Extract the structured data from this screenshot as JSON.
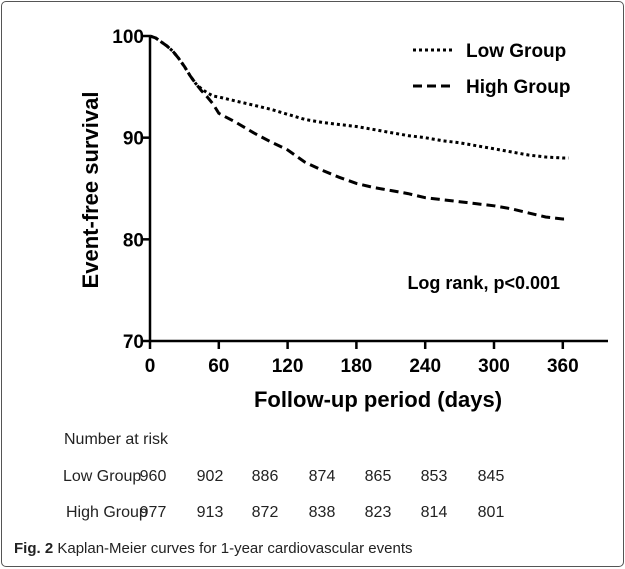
{
  "chart_data": {
    "type": "line",
    "ylabel": "Event-free survival",
    "xlabel": "Follow-up period (days)",
    "xlim": [
      0,
      375
    ],
    "ylim": [
      70,
      100
    ],
    "x_ticks": [
      "0",
      "60",
      "120",
      "180",
      "240",
      "300",
      "360"
    ],
    "x_tick_values": [
      0,
      60,
      120,
      180,
      240,
      300,
      360
    ],
    "y_ticks": [
      "70",
      "80",
      "90",
      "100"
    ],
    "y_tick_values": [
      70,
      80,
      90,
      100
    ],
    "annotation": "Log rank, p<0.001",
    "legend_position": "top-right",
    "series": [
      {
        "name": "Low Group",
        "style": "dotted",
        "x": [
          0,
          5,
          10,
          15,
          20,
          25,
          30,
          35,
          40,
          45,
          50,
          55,
          60,
          75,
          90,
          105,
          120,
          135,
          150,
          165,
          180,
          195,
          210,
          225,
          240,
          255,
          270,
          285,
          300,
          315,
          330,
          345,
          360,
          365
        ],
        "y": [
          100,
          99.8,
          99.4,
          99,
          98.5,
          97.8,
          97,
          96.1,
          95.3,
          94.8,
          94.4,
          94.1,
          94,
          93.6,
          93.2,
          92.8,
          92.3,
          91.8,
          91.5,
          91.3,
          91.1,
          90.8,
          90.5,
          90.2,
          90,
          89.7,
          89.5,
          89.2,
          88.9,
          88.6,
          88.3,
          88.1,
          88,
          88
        ]
      },
      {
        "name": "High Group",
        "style": "dashed",
        "x": [
          0,
          5,
          10,
          15,
          20,
          25,
          30,
          35,
          40,
          45,
          50,
          55,
          60,
          75,
          90,
          105,
          120,
          135,
          150,
          165,
          180,
          195,
          210,
          225,
          240,
          255,
          270,
          285,
          300,
          315,
          330,
          345,
          360,
          365
        ],
        "y": [
          100,
          99.8,
          99.4,
          99,
          98.5,
          97.8,
          97,
          96.1,
          95.3,
          94.6,
          94,
          93.3,
          92.4,
          91.5,
          90.5,
          89.6,
          88.8,
          87.6,
          86.8,
          86.1,
          85.5,
          85.1,
          84.8,
          84.5,
          84.1,
          83.9,
          83.7,
          83.5,
          83.3,
          83,
          82.6,
          82.2,
          82,
          82
        ]
      }
    ]
  },
  "risk_table": {
    "title": "Number at risk",
    "rows": [
      {
        "label": "Low Group",
        "values": [
          "960",
          "902",
          "886",
          "874",
          "865",
          "853",
          "845"
        ]
      },
      {
        "label": "High Group",
        "values": [
          "977",
          "913",
          "872",
          "838",
          "823",
          "814",
          "801"
        ]
      }
    ]
  },
  "caption": {
    "fig": "Fig. 2",
    "text": "Kaplan-Meier curves for 1-year cardiovascular events"
  }
}
